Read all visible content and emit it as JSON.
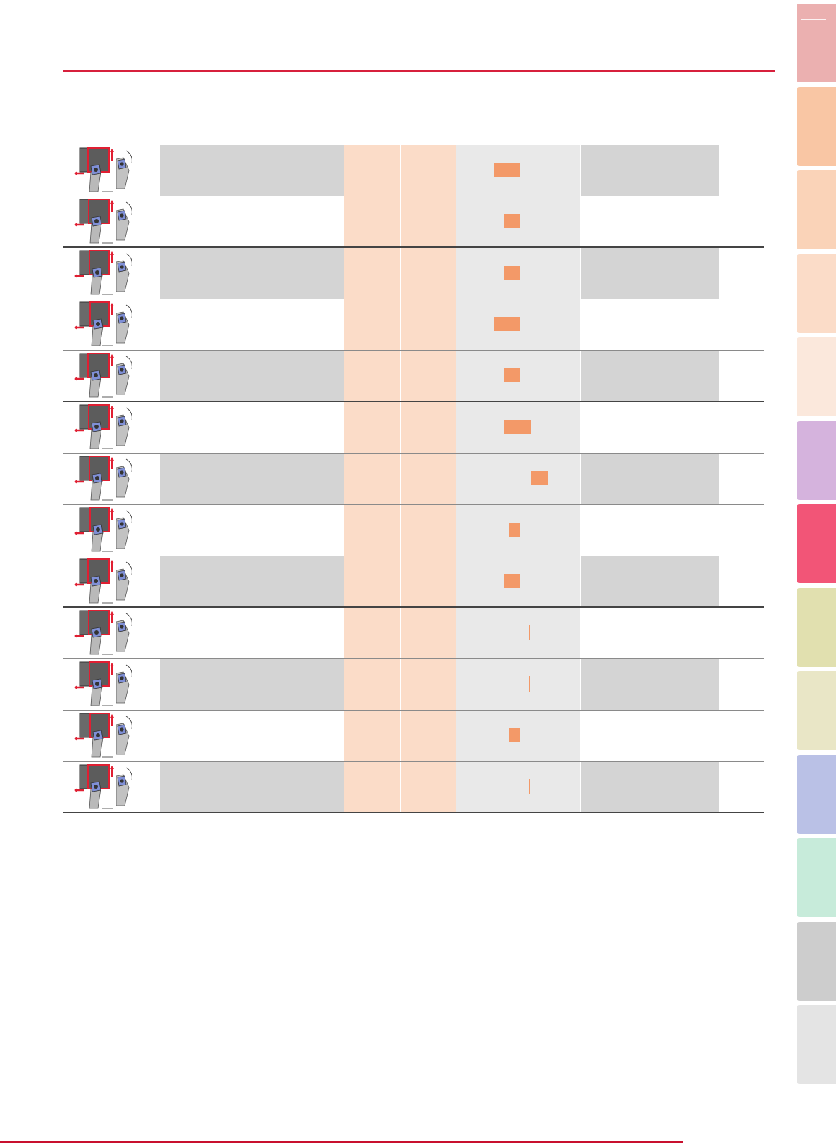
{
  "colors": {
    "accent_red": "#d7203c",
    "shade_gray": "#d4d4d4",
    "peach_column": "#fbdcc8",
    "range_background": "#e9e9e9",
    "range_bar": "#f39968",
    "insert_blue": "#7f8fd6",
    "tool_outline_red": "#e01f32"
  },
  "side_tabs": [
    {
      "color": "#ebb0b0"
    },
    {
      "color": "#f9c6a4"
    },
    {
      "color": "#fad3b8"
    },
    {
      "color": "#fbdcc8"
    },
    {
      "color": "#fbe8dc"
    },
    {
      "color": "#d5b3dd"
    },
    {
      "color": "#f25577"
    },
    {
      "color": "#e1e0af"
    },
    {
      "color": "#e9e6c6"
    },
    {
      "color": "#bac1e6"
    },
    {
      "color": "#c7ebda"
    },
    {
      "color": "#cdcdcd"
    },
    {
      "color": "#e4e4e4"
    }
  ],
  "rows": [
    {
      "range_bar": {
        "from": 0.3,
        "to": 0.51
      }
    },
    {
      "range_bar": {
        "from": 0.38,
        "to": 0.51
      }
    },
    {
      "range_bar": {
        "from": 0.38,
        "to": 0.51
      }
    },
    {
      "range_bar": {
        "from": 0.3,
        "to": 0.51
      }
    },
    {
      "range_bar": {
        "from": 0.38,
        "to": 0.51
      }
    },
    {
      "range_bar": {
        "from": 0.38,
        "to": 0.6
      }
    },
    {
      "range_bar": {
        "from": 0.6,
        "to": 0.74
      }
    },
    {
      "range_bar": {
        "from": 0.42,
        "to": 0.51
      }
    },
    {
      "range_bar": {
        "from": 0.38,
        "to": 0.51
      }
    },
    {
      "range_bar": {
        "from": 0.585,
        "to": 0.595
      }
    },
    {
      "range_bar": {
        "from": 0.585,
        "to": 0.595
      }
    },
    {
      "range_bar": {
        "from": 0.42,
        "to": 0.51
      }
    },
    {
      "range_bar": {
        "from": 0.585,
        "to": 0.595
      }
    }
  ]
}
